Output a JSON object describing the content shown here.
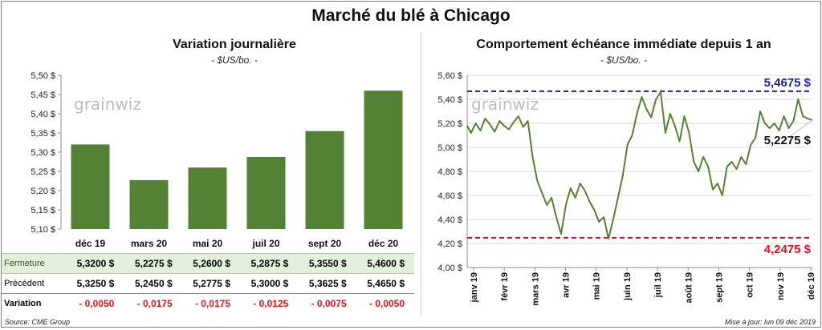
{
  "page_title": "Marché du blé à Chicago",
  "source": "Source: CME Group",
  "updated": "Mise à jour: lun 09 déc 2019",
  "watermark": "grainwiz",
  "colors": {
    "bar": "#548235",
    "line": "#548235",
    "high_line": "#1f1fb0",
    "low_line": "#e0101a",
    "negative": "#e0101a",
    "row_highlight": "#e2efda"
  },
  "chart_data": [
    {
      "type": "bar",
      "title": "Variation journalière",
      "subtitle": "- $US/bo. -",
      "categories": [
        "déc 19",
        "mars 20",
        "mai 20",
        "juil 20",
        "sept 20",
        "déc 20"
      ],
      "values": [
        5.32,
        5.2275,
        5.26,
        5.2875,
        5.355,
        5.46
      ],
      "ylim": [
        5.1,
        5.5
      ],
      "yticks": [
        "5,10 $",
        "5,15 $",
        "5,20 $",
        "5,25 $",
        "5,30 $",
        "5,35 $",
        "5,40 $",
        "5,45 $",
        "5,50 $"
      ],
      "grid": false,
      "table": {
        "rows": [
          {
            "label": "Fermeture",
            "values": [
              "5,3200  $",
              "5,2275  $",
              "5,2600  $",
              "5,2875  $",
              "5,3550  $",
              "5,4600  $"
            ]
          },
          {
            "label": "Précédent",
            "values": [
              "5,3250  $",
              "5,2450  $",
              "5,2775  $",
              "5,3000  $",
              "5,3625  $",
              "5,4650  $"
            ]
          },
          {
            "label": "Variation",
            "values": [
              "- 0,0050",
              "- 0,0175",
              "- 0,0175",
              "- 0,0125",
              "- 0,0075",
              "- 0,0050"
            ]
          }
        ]
      }
    },
    {
      "type": "line",
      "title": "Comportement  échéance immédiate depuis 1 an",
      "subtitle": "- $US/bo. -",
      "ylim": [
        4.0,
        5.6
      ],
      "yticks": [
        "4,00 $",
        "4,20 $",
        "4,40 $",
        "4,60 $",
        "4,80 $",
        "5,00 $",
        "5,20 $",
        "5,40 $",
        "5,60 $"
      ],
      "xticks": [
        "janv 19",
        "févr 19",
        "mars 19",
        "avr 19",
        "mai 19",
        "juin 19",
        "juil 19",
        "août 19",
        "sept 19",
        "oct 19",
        "nov 19",
        "déc 19"
      ],
      "x_range": [
        "2018-12-10",
        "2019-12-09"
      ],
      "grid": true,
      "reference_lines": [
        {
          "name": "high",
          "value": 5.4675,
          "label": "5,4675 $"
        },
        {
          "name": "low",
          "value": 4.2475,
          "label": "4,2475 $"
        }
      ],
      "last_value_label": "5,2275 $",
      "series": [
        {
          "x": [
            "2018-12-10",
            "2018-12-14",
            "2018-12-19",
            "2018-12-24",
            "2018-12-29",
            "2019-01-03",
            "2019-01-08",
            "2019-01-13",
            "2019-01-18",
            "2019-01-23",
            "2019-01-28",
            "2019-02-02",
            "2019-02-07",
            "2019-02-12",
            "2019-02-17",
            "2019-02-22",
            "2019-02-27",
            "2019-03-04",
            "2019-03-09",
            "2019-03-14",
            "2019-03-19",
            "2019-03-24",
            "2019-03-29",
            "2019-04-03",
            "2019-04-08",
            "2019-04-13",
            "2019-04-18",
            "2019-04-23",
            "2019-04-28",
            "2019-05-03",
            "2019-05-08",
            "2019-05-13",
            "2019-05-18",
            "2019-05-23",
            "2019-05-28",
            "2019-06-02",
            "2019-06-07",
            "2019-06-12",
            "2019-06-17",
            "2019-06-22",
            "2019-06-27",
            "2019-07-02",
            "2019-07-07",
            "2019-07-12",
            "2019-07-17",
            "2019-07-22",
            "2019-07-27",
            "2019-08-01",
            "2019-08-06",
            "2019-08-11",
            "2019-08-16",
            "2019-08-21",
            "2019-08-26",
            "2019-08-31",
            "2019-09-05",
            "2019-09-10",
            "2019-09-15",
            "2019-09-20",
            "2019-09-25",
            "2019-09-30",
            "2019-10-05",
            "2019-10-10",
            "2019-10-15",
            "2019-10-20",
            "2019-10-25",
            "2019-10-30",
            "2019-11-04",
            "2019-11-09",
            "2019-11-14",
            "2019-11-19",
            "2019-11-24",
            "2019-11-29",
            "2019-12-04",
            "2019-12-09"
          ],
          "y": [
            5.18,
            5.12,
            5.2,
            5.14,
            5.24,
            5.19,
            5.13,
            5.22,
            5.18,
            5.15,
            5.21,
            5.26,
            5.17,
            5.22,
            4.92,
            4.72,
            4.62,
            4.52,
            4.58,
            4.42,
            4.28,
            4.52,
            4.66,
            4.58,
            4.7,
            4.64,
            4.55,
            4.48,
            4.38,
            4.42,
            4.24,
            4.4,
            4.58,
            4.76,
            5.02,
            5.1,
            5.28,
            5.42,
            5.32,
            5.25,
            5.4,
            5.46,
            5.12,
            5.28,
            5.18,
            5.05,
            5.26,
            5.12,
            4.88,
            4.8,
            4.92,
            4.84,
            4.65,
            4.7,
            4.6,
            4.84,
            4.88,
            4.82,
            4.92,
            4.86,
            5.02,
            5.08,
            5.3,
            5.2,
            5.16,
            5.2,
            5.14,
            5.26,
            5.16,
            5.22,
            5.4,
            5.26,
            5.24,
            5.2275
          ]
        }
      ]
    }
  ]
}
